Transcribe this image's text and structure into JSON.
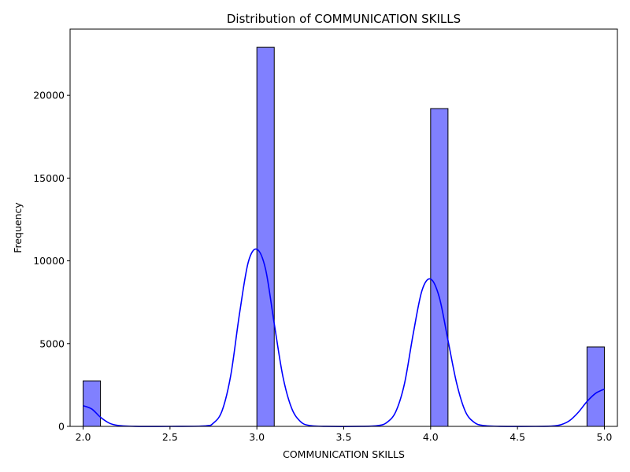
{
  "chart_data": {
    "type": "bar",
    "title": "Distribution of COMMUNICATION SKILLS",
    "xlabel": "COMMUNICATION SKILLS",
    "ylabel": "Frequency",
    "xlim": [
      1.925,
      5.075
    ],
    "ylim": [
      0,
      24000
    ],
    "xticks": [
      "2.0",
      "2.5",
      "3.0",
      "3.5",
      "4.0",
      "4.5",
      "5.0"
    ],
    "yticks": [
      "0",
      "5000",
      "10000",
      "15000",
      "20000"
    ],
    "grid": false,
    "bars": [
      {
        "x0": 2.0,
        "x1": 2.1,
        "value": 2750
      },
      {
        "x0": 2.9,
        "x1": 3.0,
        "value": 0
      },
      {
        "x0": 3.0,
        "x1": 3.1,
        "value": 22900
      },
      {
        "x0": 4.0,
        "x1": 4.1,
        "value": 19200
      },
      {
        "x0": 4.9,
        "x1": 5.0,
        "value": 4800
      }
    ],
    "kde": {
      "x": [
        2.0,
        2.05,
        2.1,
        2.15,
        2.2,
        2.3,
        2.5,
        2.7,
        2.75,
        2.8,
        2.85,
        2.9,
        2.95,
        3.0,
        3.05,
        3.1,
        3.15,
        3.2,
        3.25,
        3.3,
        3.4,
        3.6,
        3.7,
        3.75,
        3.8,
        3.85,
        3.9,
        3.95,
        4.0,
        4.05,
        4.1,
        4.15,
        4.2,
        4.25,
        4.3,
        4.4,
        4.6,
        4.7,
        4.75,
        4.8,
        4.85,
        4.9,
        4.95,
        5.0
      ],
      "y": [
        1250,
        1050,
        550,
        200,
        60,
        5,
        0,
        30,
        200,
        950,
        3100,
        6800,
        9900,
        10700,
        9500,
        6200,
        3000,
        1100,
        300,
        60,
        2,
        2,
        50,
        250,
        900,
        2600,
        5600,
        8200,
        8900,
        7800,
        5200,
        2600,
        900,
        250,
        60,
        3,
        0,
        20,
        100,
        350,
        850,
        1500,
        2000,
        2250
      ]
    },
    "colors": {
      "bar_fill": "#8080ff",
      "bar_edge": "#000000",
      "kde_line": "#0000ff"
    }
  }
}
